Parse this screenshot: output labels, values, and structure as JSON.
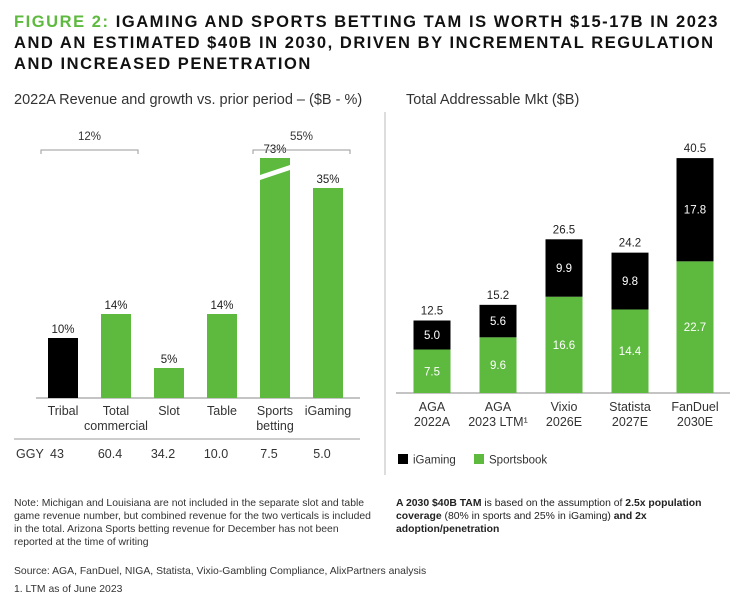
{
  "figure": {
    "label": "FIGURE 2:",
    "title": "IGAMING AND SPORTS BETTING TAM IS WORTH $15-17B IN 2023 AND AN ESTIMATED $40B IN 2030, DRIVEN BY INCREMENTAL REGULATION AND INCREASED PENETRATION"
  },
  "colors": {
    "green": "#5dba3e",
    "black": "#000000",
    "accent": "#5dba3e"
  },
  "chart_data": [
    {
      "type": "bar",
      "title": "2022A Revenue and growth vs. prior period – ($B - %)",
      "categories": [
        "Tribal",
        "Total commercial",
        "Slot",
        "Table",
        "Sports betting",
        "iGaming"
      ],
      "category_lines": [
        [
          "Tribal"
        ],
        [
          "Total",
          "commercial"
        ],
        [
          "Slot"
        ],
        [
          "Table"
        ],
        [
          "Sports",
          "betting"
        ],
        [
          "iGaming"
        ]
      ],
      "values": [
        10,
        14,
        5,
        14,
        73,
        35
      ],
      "value_labels": [
        "10%",
        "14%",
        "5%",
        "14%",
        "73%",
        "35%"
      ],
      "bar_colors": [
        "#000000",
        "#5dba3e",
        "#5dba3e",
        "#5dba3e",
        "#5dba3e",
        "#5dba3e"
      ],
      "axis_break": {
        "category": "Sports betting",
        "drawn_as": 40
      },
      "ylim": [
        0,
        40
      ],
      "group_brackets": [
        {
          "label": "12%",
          "from": "Tribal",
          "to": "Total commercial"
        },
        {
          "label": "55%",
          "from": "Sports betting",
          "to": "iGaming"
        }
      ],
      "ggy": {
        "label": "GGY",
        "values": [
          "43",
          "60.4",
          "34.2",
          "10.0",
          "7.5",
          "5.0"
        ]
      }
    },
    {
      "type": "bar",
      "stacked": true,
      "title": "Total Addressable Mkt ($B)",
      "categories": [
        "AGA 2022A",
        "AGA 2023 LTM¹",
        "Vixio 2026E",
        "Statista 2027E",
        "FanDuel 2030E"
      ],
      "category_lines": [
        [
          "AGA",
          "2022A"
        ],
        [
          "AGA",
          "2023 LTM¹"
        ],
        [
          "Vixio",
          "2026E"
        ],
        [
          "Statista",
          "2027E"
        ],
        [
          "FanDuel",
          "2030E"
        ]
      ],
      "series": [
        {
          "name": "Sportsbook",
          "color": "#5dba3e",
          "values": [
            7.5,
            9.6,
            16.6,
            14.4,
            22.7
          ],
          "labels": [
            "7.5",
            "9.6",
            "16.6",
            "14.4",
            "22.7"
          ]
        },
        {
          "name": "iGaming",
          "color": "#000000",
          "values": [
            5.0,
            5.6,
            9.9,
            9.8,
            17.8
          ],
          "labels": [
            "5.0",
            "5.6",
            "9.9",
            "9.8",
            "17.8"
          ]
        }
      ],
      "totals": [
        "12.5",
        "15.2",
        "26.5",
        "24.2",
        "40.5"
      ],
      "ylim": [
        0,
        40.5
      ],
      "legend": [
        {
          "name": "iGaming",
          "color": "#000000"
        },
        {
          "name": "Sportsbook",
          "color": "#5dba3e"
        }
      ],
      "legend_position": "bottom-left"
    }
  ],
  "notes": {
    "left": "Note: Michigan and Louisiana are not included in the separate slot and table game revenue number, but combined revenue for the two verticals is included in the total. Arizona Sports betting revenue for December has not been reported at the time of writing",
    "tam_bold_1": "A 2030 $40B TAM",
    "tam_text_1": " is based on the assumption of ",
    "tam_bold_2": "2.5x population coverage",
    "tam_text_2": " (80% in sports and 25% in iGaming) ",
    "tam_bold_3": "and 2x adoption/penetration",
    "source": "Source: AGA, FanDuel, NIGA, Statista, Vixio-Gambling Compliance, AlixPartners analysis",
    "footnote": "1. LTM as of June 2023"
  }
}
